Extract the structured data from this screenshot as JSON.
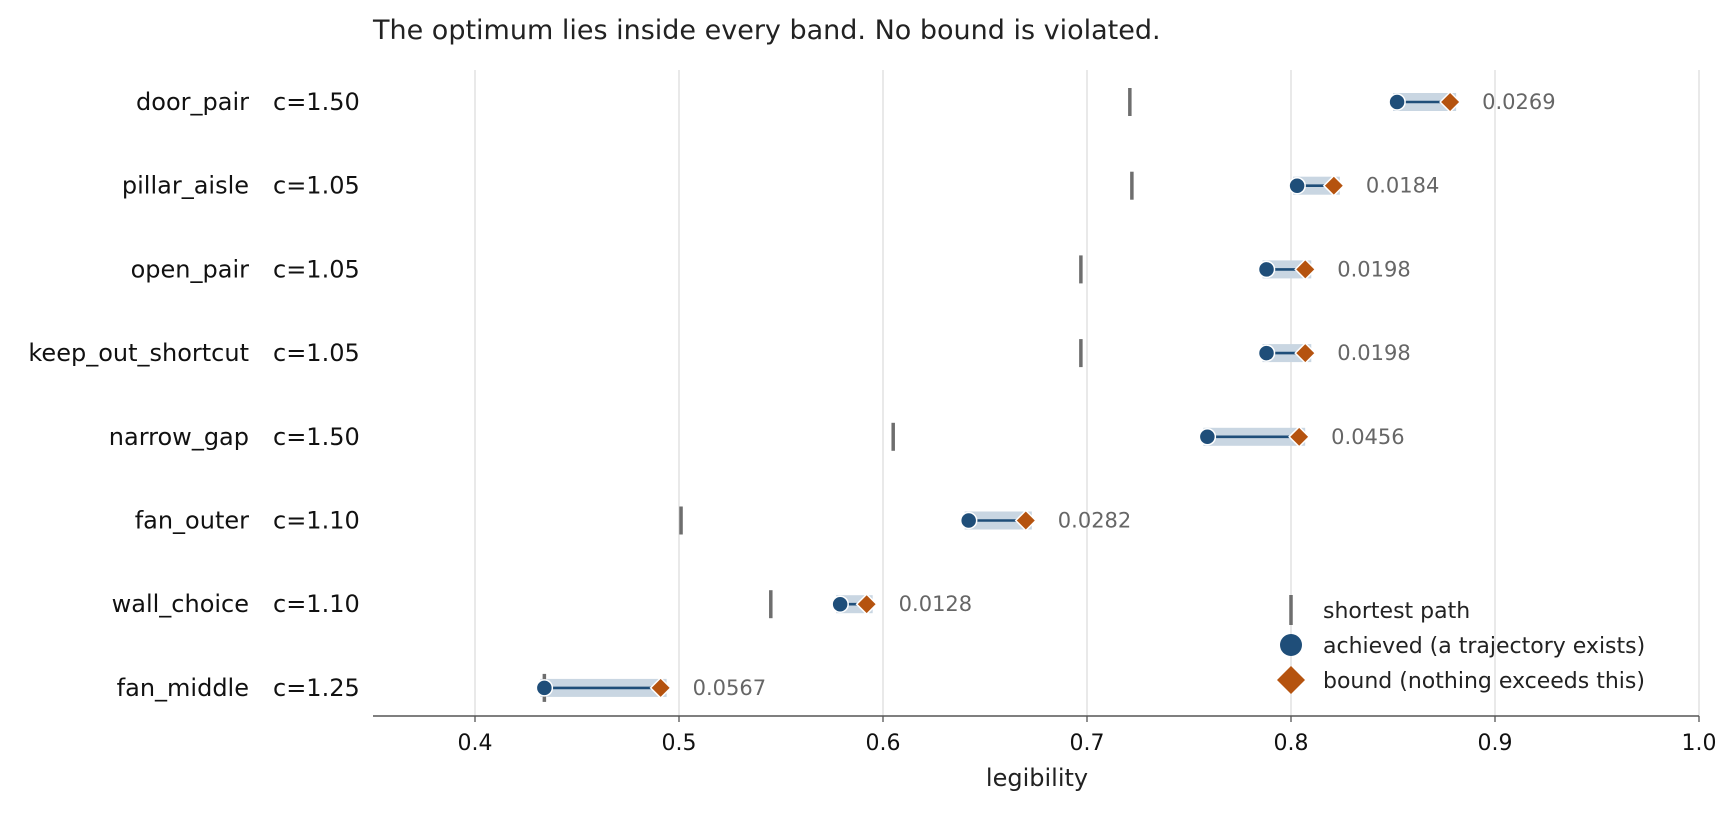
{
  "chart_data": {
    "type": "dumbbell",
    "title": "The optimum lies inside every band. No bound is violated.",
    "xlabel": "legibility",
    "xlim": [
      0.35,
      1.0
    ],
    "xticks": [
      "0.4",
      "0.5",
      "0.6",
      "0.7",
      "0.8",
      "0.9",
      "1.0"
    ],
    "xtick_values": [
      0.4,
      0.5,
      0.6,
      0.7,
      0.8,
      0.9,
      1.0
    ],
    "grid": "vertical",
    "legend_position": "lower-right",
    "colors": {
      "achieved": "#1f4e79",
      "bound": "#b5530f",
      "shortest": "#6e6e6e",
      "band": "#c9d6e2",
      "grid": "#dddddd",
      "gap_text": "#666666"
    },
    "rows": [
      {
        "name": "door_pair",
        "c": "c=1.50",
        "shortest": 0.721,
        "achieved": 0.852,
        "bound": 0.878,
        "gap": "0.0269"
      },
      {
        "name": "pillar_aisle",
        "c": "c=1.05",
        "shortest": 0.722,
        "achieved": 0.803,
        "bound": 0.821,
        "gap": "0.0184"
      },
      {
        "name": "open_pair",
        "c": "c=1.05",
        "shortest": 0.697,
        "achieved": 0.788,
        "bound": 0.807,
        "gap": "0.0198"
      },
      {
        "name": "keep_out_shortcut",
        "c": "c=1.05",
        "shortest": 0.697,
        "achieved": 0.788,
        "bound": 0.807,
        "gap": "0.0198"
      },
      {
        "name": "narrow_gap",
        "c": "c=1.50",
        "shortest": 0.605,
        "achieved": 0.759,
        "bound": 0.804,
        "gap": "0.0456"
      },
      {
        "name": "fan_outer",
        "c": "c=1.10",
        "shortest": 0.501,
        "achieved": 0.642,
        "bound": 0.67,
        "gap": "0.0282"
      },
      {
        "name": "wall_choice",
        "c": "c=1.10",
        "shortest": 0.545,
        "achieved": 0.579,
        "bound": 0.592,
        "gap": "0.0128"
      },
      {
        "name": "fan_middle",
        "c": "c=1.25",
        "shortest": 0.434,
        "achieved": 0.434,
        "bound": 0.491,
        "gap": "0.0567"
      }
    ],
    "legend": [
      {
        "key": "shortest",
        "label": "shortest path"
      },
      {
        "key": "achieved",
        "label": "achieved (a trajectory exists)"
      },
      {
        "key": "bound",
        "label": "bound (nothing exceeds this)"
      }
    ]
  }
}
